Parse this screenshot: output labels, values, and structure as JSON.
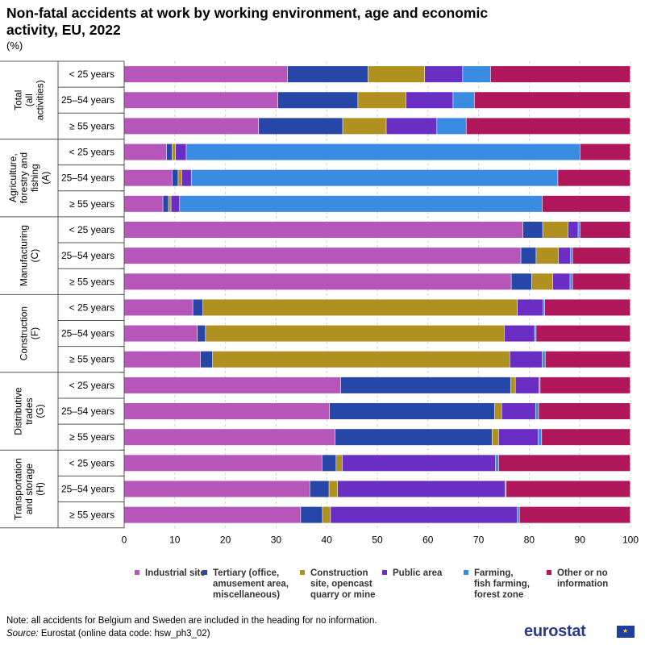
{
  "title": "Non-fatal accidents at work by working environment, age and economic activity, EU, 2022",
  "unit": "(%)",
  "note": "Note: all accidents for Belgium and Sweden are included in the heading for no information.",
  "source_label": "Source:",
  "source_text": " Eurostat (online data code: hsw_ph3_02)",
  "logo": "eurostat",
  "chart_data": {
    "type": "bar",
    "orientation": "horizontal",
    "stacked": true,
    "xlim": [
      0,
      100
    ],
    "xticks": [
      0,
      10,
      20,
      30,
      40,
      50,
      60,
      70,
      80,
      90,
      100
    ],
    "grid": true,
    "legend_position": "bottom",
    "groups": [
      {
        "label": [
          "Total",
          "(all",
          "activities)"
        ],
        "categories": [
          "< 25 years",
          "25–54 years",
          "≥ 55 years"
        ]
      },
      {
        "label": [
          "Agriculture,",
          "forestry and",
          "fishing",
          "(A)"
        ],
        "categories": [
          "< 25 years",
          "25–54 years",
          "≥ 55 years"
        ]
      },
      {
        "label": [
          "Manufacturing",
          "(C)"
        ],
        "categories": [
          "< 25 years",
          "25–54 years",
          "≥ 55 years"
        ]
      },
      {
        "label": [
          "Construction",
          "(F)"
        ],
        "categories": [
          "< 25 years",
          "25–54 years",
          "≥ 55 years"
        ]
      },
      {
        "label": [
          "Distributive",
          "trades",
          "(G)"
        ],
        "categories": [
          "< 25 years",
          "25–54 years",
          "≥ 55 years"
        ]
      },
      {
        "label": [
          "Transportation",
          "and storage",
          "(H)"
        ],
        "categories": [
          "< 25 years",
          "25–54 years",
          "≥ 55 years"
        ]
      }
    ],
    "series": [
      {
        "name": "Industrial site",
        "color": "#b656bb",
        "values": [
          32.3,
          30.4,
          26.6,
          8.4,
          9.5,
          7.7,
          78.8,
          78.4,
          76.5,
          13.6,
          14.5,
          15.1,
          42.8,
          40.6,
          41.7,
          39.1,
          36.7,
          34.9
        ]
      },
      {
        "name": "Tertiary (office, amusement area, miscellaneous)",
        "legend_lines": [
          "Tertiary (office,",
          "amusement area,",
          "miscellaneous)"
        ],
        "color": "#2647a8",
        "values": [
          15.9,
          15.8,
          16.6,
          1.1,
          1.2,
          1.1,
          3.9,
          3.0,
          4.0,
          2.0,
          1.6,
          2.4,
          33.6,
          32.6,
          31.0,
          2.8,
          3.8,
          4.3
        ]
      },
      {
        "name": "Construction site, opencast quarry or mine",
        "legend_lines": [
          "Construction",
          "site, opencast",
          "quarry or mine"
        ],
        "color": "#b0901f",
        "values": [
          11.2,
          9.5,
          8.6,
          0.7,
          0.7,
          0.5,
          5.0,
          4.4,
          4.2,
          62.1,
          59.0,
          58.7,
          0.9,
          1.4,
          1.3,
          1.2,
          1.7,
          1.6
        ]
      },
      {
        "name": "Public area",
        "legend_lines": [
          "Public area"
        ],
        "color": "#6a2ec4",
        "values": [
          7.5,
          9.3,
          10.0,
          2.1,
          1.9,
          1.7,
          2.0,
          2.4,
          3.4,
          5.1,
          6.0,
          6.4,
          4.7,
          6.7,
          7.8,
          30.3,
          33.1,
          36.9
        ]
      },
      {
        "name": "Farming, fish farming, forest zone",
        "legend_lines": [
          "Farming,",
          "fish farming,",
          "forest zone"
        ],
        "color": "#3a8be2",
        "values": [
          5.5,
          4.2,
          5.8,
          77.8,
          72.4,
          71.6,
          0.4,
          0.4,
          0.5,
          0.3,
          0.3,
          0.6,
          0.2,
          0.6,
          0.7,
          0.6,
          0.2,
          0.4
        ]
      },
      {
        "name": "Other or no information",
        "legend_lines": [
          "Other or no",
          "information"
        ],
        "color": "#b0175a",
        "values": [
          27.6,
          30.8,
          32.4,
          9.9,
          14.3,
          17.4,
          9.9,
          11.4,
          11.4,
          16.9,
          18.6,
          16.8,
          17.8,
          18.1,
          17.5,
          26.0,
          24.5,
          21.9
        ]
      }
    ]
  }
}
